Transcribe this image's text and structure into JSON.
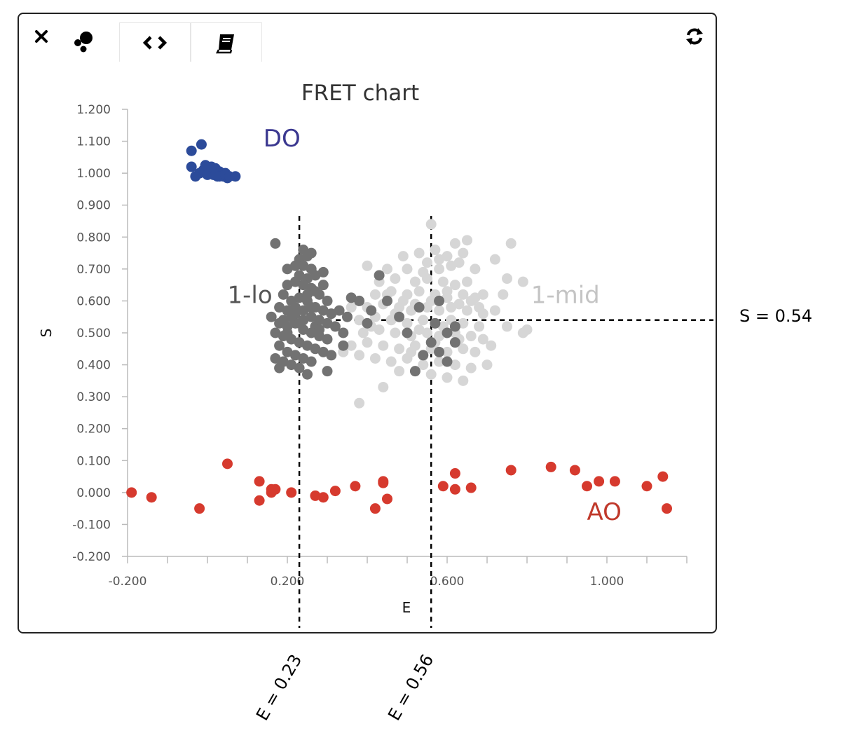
{
  "toolbar": {
    "close_icon": "close-icon",
    "scatter_icon": "scatter-icon",
    "code_icon": "code-icon",
    "book_icon": "book-icon",
    "refresh_icon": "refresh-icon"
  },
  "colors": {
    "DO": "#2c4b9a",
    "AO": "#d63a2e",
    "lo": "#727272",
    "mid": "#d6d6d6",
    "DO_label": "#3b3890",
    "AO_label": "#c0392b",
    "lo_label": "#555555",
    "mid_label": "#c4c4c4"
  },
  "chart_data": {
    "type": "scatter",
    "title": "FRET chart",
    "xlabel": "E",
    "ylabel": "S",
    "xlim": [
      -0.2,
      1.2
    ],
    "ylim": [
      -0.2,
      1.2
    ],
    "xticks": [
      "-0.200",
      "0.200",
      "0.600",
      "1.000"
    ],
    "xtick_values": [
      -0.2,
      0.2,
      0.6,
      1.0
    ],
    "yticks": [
      "1.200",
      "1.100",
      "1.000",
      "0.900",
      "0.800",
      "0.700",
      "0.600",
      "0.500",
      "0.400",
      "0.300",
      "0.200",
      "0.100",
      "0.000",
      "-0.100",
      "-0.200"
    ],
    "ytick_values": [
      1.2,
      1.1,
      1.0,
      0.9,
      0.8,
      0.7,
      0.6,
      0.5,
      0.4,
      0.3,
      0.2,
      0.1,
      0.0,
      -0.1,
      -0.2
    ],
    "grid": false,
    "reference_lines": [
      {
        "orientation": "vertical",
        "value": 0.23,
        "label": "E = 0.23"
      },
      {
        "orientation": "vertical",
        "value": 0.56,
        "label": "E = 0.56"
      },
      {
        "orientation": "horizontal",
        "value": 0.54,
        "label": "S = 0.54"
      }
    ],
    "annotations": [
      {
        "text": "DO",
        "series": "DO",
        "x": 0.14,
        "y": 1.11
      },
      {
        "text": "1-lo",
        "series": "1-lo",
        "x": 0.05,
        "y": 0.62
      },
      {
        "text": "1-mid",
        "series": "1-mid",
        "x": 0.81,
        "y": 0.62
      },
      {
        "text": "AO",
        "series": "AO",
        "x": 0.95,
        "y": -0.06
      }
    ],
    "series": [
      {
        "key": "DO",
        "points": [
          [
            -0.04,
            1.07
          ],
          [
            -0.015,
            1.09
          ],
          [
            -0.04,
            1.02
          ],
          [
            -0.03,
            0.99
          ],
          [
            -0.02,
            1.0
          ],
          [
            -0.01,
            1.01
          ],
          [
            0.0,
            1.02
          ],
          [
            0.005,
            1.0
          ],
          [
            0.01,
            1.01
          ],
          [
            0.015,
            0.995
          ],
          [
            0.02,
            1.015
          ],
          [
            0.025,
            0.99
          ],
          [
            0.03,
            1.005
          ],
          [
            0.035,
            1.0
          ],
          [
            0.04,
            0.99
          ],
          [
            0.045,
            1.0
          ],
          [
            0.05,
            0.985
          ],
          [
            -0.005,
            1.025
          ],
          [
            0.0,
            0.995
          ],
          [
            0.01,
            1.02
          ],
          [
            0.02,
            0.995
          ],
          [
            0.03,
            0.99
          ],
          [
            0.045,
            0.995
          ],
          [
            0.055,
            0.99
          ],
          [
            0.07,
            0.99
          ]
        ]
      },
      {
        "key": "1-lo",
        "points": [
          [
            0.17,
            0.78
          ],
          [
            0.23,
            0.73
          ],
          [
            0.24,
            0.76
          ],
          [
            0.25,
            0.74
          ],
          [
            0.26,
            0.75
          ],
          [
            0.2,
            0.7
          ],
          [
            0.22,
            0.71
          ],
          [
            0.24,
            0.71
          ],
          [
            0.26,
            0.7
          ],
          [
            0.27,
            0.68
          ],
          [
            0.29,
            0.69
          ],
          [
            0.23,
            0.68
          ],
          [
            0.25,
            0.67
          ],
          [
            0.2,
            0.65
          ],
          [
            0.22,
            0.66
          ],
          [
            0.24,
            0.65
          ],
          [
            0.26,
            0.64
          ],
          [
            0.28,
            0.62
          ],
          [
            0.3,
            0.6
          ],
          [
            0.19,
            0.62
          ],
          [
            0.21,
            0.6
          ],
          [
            0.23,
            0.61
          ],
          [
            0.25,
            0.6
          ],
          [
            0.27,
            0.58
          ],
          [
            0.29,
            0.57
          ],
          [
            0.31,
            0.56
          ],
          [
            0.33,
            0.57
          ],
          [
            0.35,
            0.55
          ],
          [
            0.18,
            0.58
          ],
          [
            0.2,
            0.57
          ],
          [
            0.22,
            0.56
          ],
          [
            0.24,
            0.57
          ],
          [
            0.26,
            0.55
          ],
          [
            0.28,
            0.54
          ],
          [
            0.3,
            0.53
          ],
          [
            0.32,
            0.52
          ],
          [
            0.34,
            0.5
          ],
          [
            0.16,
            0.55
          ],
          [
            0.18,
            0.53
          ],
          [
            0.2,
            0.52
          ],
          [
            0.22,
            0.53
          ],
          [
            0.24,
            0.51
          ],
          [
            0.26,
            0.5
          ],
          [
            0.28,
            0.49
          ],
          [
            0.3,
            0.48
          ],
          [
            0.17,
            0.5
          ],
          [
            0.19,
            0.49
          ],
          [
            0.21,
            0.48
          ],
          [
            0.23,
            0.47
          ],
          [
            0.25,
            0.46
          ],
          [
            0.27,
            0.45
          ],
          [
            0.29,
            0.44
          ],
          [
            0.31,
            0.43
          ],
          [
            0.18,
            0.46
          ],
          [
            0.2,
            0.44
          ],
          [
            0.22,
            0.43
          ],
          [
            0.24,
            0.42
          ],
          [
            0.26,
            0.41
          ],
          [
            0.19,
            0.41
          ],
          [
            0.21,
            0.4
          ],
          [
            0.23,
            0.39
          ],
          [
            0.17,
            0.42
          ],
          [
            0.18,
            0.39
          ],
          [
            0.25,
            0.37
          ],
          [
            0.3,
            0.38
          ],
          [
            0.34,
            0.46
          ],
          [
            0.36,
            0.61
          ],
          [
            0.38,
            0.6
          ],
          [
            0.41,
            0.57
          ],
          [
            0.4,
            0.53
          ],
          [
            0.43,
            0.68
          ],
          [
            0.45,
            0.6
          ],
          [
            0.48,
            0.55
          ],
          [
            0.5,
            0.5
          ],
          [
            0.53,
            0.58
          ],
          [
            0.56,
            0.47
          ],
          [
            0.58,
            0.6
          ],
          [
            0.54,
            0.43
          ],
          [
            0.6,
            0.41
          ],
          [
            0.52,
            0.38
          ],
          [
            0.6,
            0.5
          ],
          [
            0.62,
            0.52
          ],
          [
            0.57,
            0.53
          ],
          [
            0.58,
            0.44
          ],
          [
            0.62,
            0.47
          ],
          [
            0.21,
            0.55
          ],
          [
            0.23,
            0.53
          ],
          [
            0.27,
            0.52
          ],
          [
            0.19,
            0.54
          ],
          [
            0.2,
            0.5
          ],
          [
            0.24,
            0.54
          ],
          [
            0.26,
            0.58
          ],
          [
            0.28,
            0.51
          ],
          [
            0.22,
            0.58
          ],
          [
            0.25,
            0.62
          ],
          [
            0.27,
            0.63
          ],
          [
            0.29,
            0.65
          ]
        ]
      },
      {
        "key": "1-mid",
        "points": [
          [
            0.56,
            0.84
          ],
          [
            0.53,
            0.75
          ],
          [
            0.57,
            0.76
          ],
          [
            0.62,
            0.78
          ],
          [
            0.65,
            0.79
          ],
          [
            0.49,
            0.74
          ],
          [
            0.55,
            0.72
          ],
          [
            0.58,
            0.73
          ],
          [
            0.6,
            0.74
          ],
          [
            0.64,
            0.75
          ],
          [
            0.76,
            0.78
          ],
          [
            0.4,
            0.71
          ],
          [
            0.45,
            0.7
          ],
          [
            0.5,
            0.7
          ],
          [
            0.54,
            0.69
          ],
          [
            0.58,
            0.7
          ],
          [
            0.61,
            0.71
          ],
          [
            0.63,
            0.72
          ],
          [
            0.67,
            0.7
          ],
          [
            0.72,
            0.73
          ],
          [
            0.43,
            0.66
          ],
          [
            0.47,
            0.67
          ],
          [
            0.52,
            0.66
          ],
          [
            0.55,
            0.67
          ],
          [
            0.59,
            0.66
          ],
          [
            0.62,
            0.65
          ],
          [
            0.65,
            0.66
          ],
          [
            0.75,
            0.67
          ],
          [
            0.79,
            0.66
          ],
          [
            0.42,
            0.62
          ],
          [
            0.46,
            0.63
          ],
          [
            0.5,
            0.62
          ],
          [
            0.53,
            0.63
          ],
          [
            0.57,
            0.62
          ],
          [
            0.6,
            0.61
          ],
          [
            0.64,
            0.62
          ],
          [
            0.67,
            0.61
          ],
          [
            0.69,
            0.62
          ],
          [
            0.74,
            0.62
          ],
          [
            0.36,
            0.58
          ],
          [
            0.4,
            0.58
          ],
          [
            0.44,
            0.59
          ],
          [
            0.48,
            0.58
          ],
          [
            0.51,
            0.57
          ],
          [
            0.55,
            0.58
          ],
          [
            0.58,
            0.57
          ],
          [
            0.61,
            0.58
          ],
          [
            0.65,
            0.57
          ],
          [
            0.69,
            0.56
          ],
          [
            0.72,
            0.57
          ],
          [
            0.38,
            0.54
          ],
          [
            0.42,
            0.55
          ],
          [
            0.46,
            0.54
          ],
          [
            0.5,
            0.53
          ],
          [
            0.54,
            0.54
          ],
          [
            0.57,
            0.53
          ],
          [
            0.61,
            0.54
          ],
          [
            0.64,
            0.53
          ],
          [
            0.68,
            0.52
          ],
          [
            0.75,
            0.52
          ],
          [
            0.8,
            0.51
          ],
          [
            0.39,
            0.5
          ],
          [
            0.43,
            0.51
          ],
          [
            0.47,
            0.5
          ],
          [
            0.51,
            0.49
          ],
          [
            0.55,
            0.5
          ],
          [
            0.58,
            0.49
          ],
          [
            0.62,
            0.5
          ],
          [
            0.66,
            0.49
          ],
          [
            0.69,
            0.48
          ],
          [
            0.79,
            0.5
          ],
          [
            0.36,
            0.46
          ],
          [
            0.4,
            0.47
          ],
          [
            0.44,
            0.46
          ],
          [
            0.48,
            0.45
          ],
          [
            0.52,
            0.46
          ],
          [
            0.56,
            0.45
          ],
          [
            0.6,
            0.44
          ],
          [
            0.64,
            0.45
          ],
          [
            0.67,
            0.44
          ],
          [
            0.71,
            0.46
          ],
          [
            0.34,
            0.44
          ],
          [
            0.38,
            0.43
          ],
          [
            0.42,
            0.42
          ],
          [
            0.46,
            0.41
          ],
          [
            0.5,
            0.42
          ],
          [
            0.54,
            0.4
          ],
          [
            0.58,
            0.41
          ],
          [
            0.62,
            0.4
          ],
          [
            0.66,
            0.39
          ],
          [
            0.7,
            0.4
          ],
          [
            0.48,
            0.38
          ],
          [
            0.56,
            0.37
          ],
          [
            0.6,
            0.36
          ],
          [
            0.64,
            0.35
          ],
          [
            0.44,
            0.33
          ],
          [
            0.38,
            0.28
          ],
          [
            0.45,
            0.62
          ],
          [
            0.49,
            0.6
          ],
          [
            0.52,
            0.59
          ],
          [
            0.56,
            0.6
          ],
          [
            0.6,
            0.63
          ],
          [
            0.63,
            0.59
          ],
          [
            0.66,
            0.6
          ],
          [
            0.68,
            0.58
          ],
          [
            0.53,
            0.51
          ],
          [
            0.47,
            0.56
          ],
          [
            0.41,
            0.52
          ],
          [
            0.59,
            0.52
          ],
          [
            0.63,
            0.48
          ],
          [
            0.57,
            0.47
          ],
          [
            0.51,
            0.44
          ]
        ]
      },
      {
        "key": "AO",
        "points": [
          [
            -0.19,
            0.0
          ],
          [
            -0.14,
            -0.015
          ],
          [
            -0.02,
            -0.05
          ],
          [
            0.05,
            0.09
          ],
          [
            0.13,
            -0.025
          ],
          [
            0.13,
            0.035
          ],
          [
            0.16,
            0.01
          ],
          [
            0.17,
            0.01
          ],
          [
            0.16,
            0.0
          ],
          [
            0.21,
            0.0
          ],
          [
            0.27,
            -0.01
          ],
          [
            0.29,
            -0.015
          ],
          [
            0.32,
            0.005
          ],
          [
            0.37,
            0.02
          ],
          [
            0.42,
            -0.05
          ],
          [
            0.44,
            0.035
          ],
          [
            0.44,
            0.03
          ],
          [
            0.45,
            -0.02
          ],
          [
            0.59,
            0.02
          ],
          [
            0.62,
            0.01
          ],
          [
            0.62,
            0.06
          ],
          [
            0.66,
            0.015
          ],
          [
            0.76,
            0.07
          ],
          [
            0.86,
            0.08
          ],
          [
            0.92,
            0.07
          ],
          [
            0.95,
            0.02
          ],
          [
            0.98,
            0.035
          ],
          [
            1.02,
            0.035
          ],
          [
            1.1,
            0.02
          ],
          [
            1.14,
            0.05
          ],
          [
            1.15,
            -0.05
          ]
        ]
      }
    ]
  }
}
